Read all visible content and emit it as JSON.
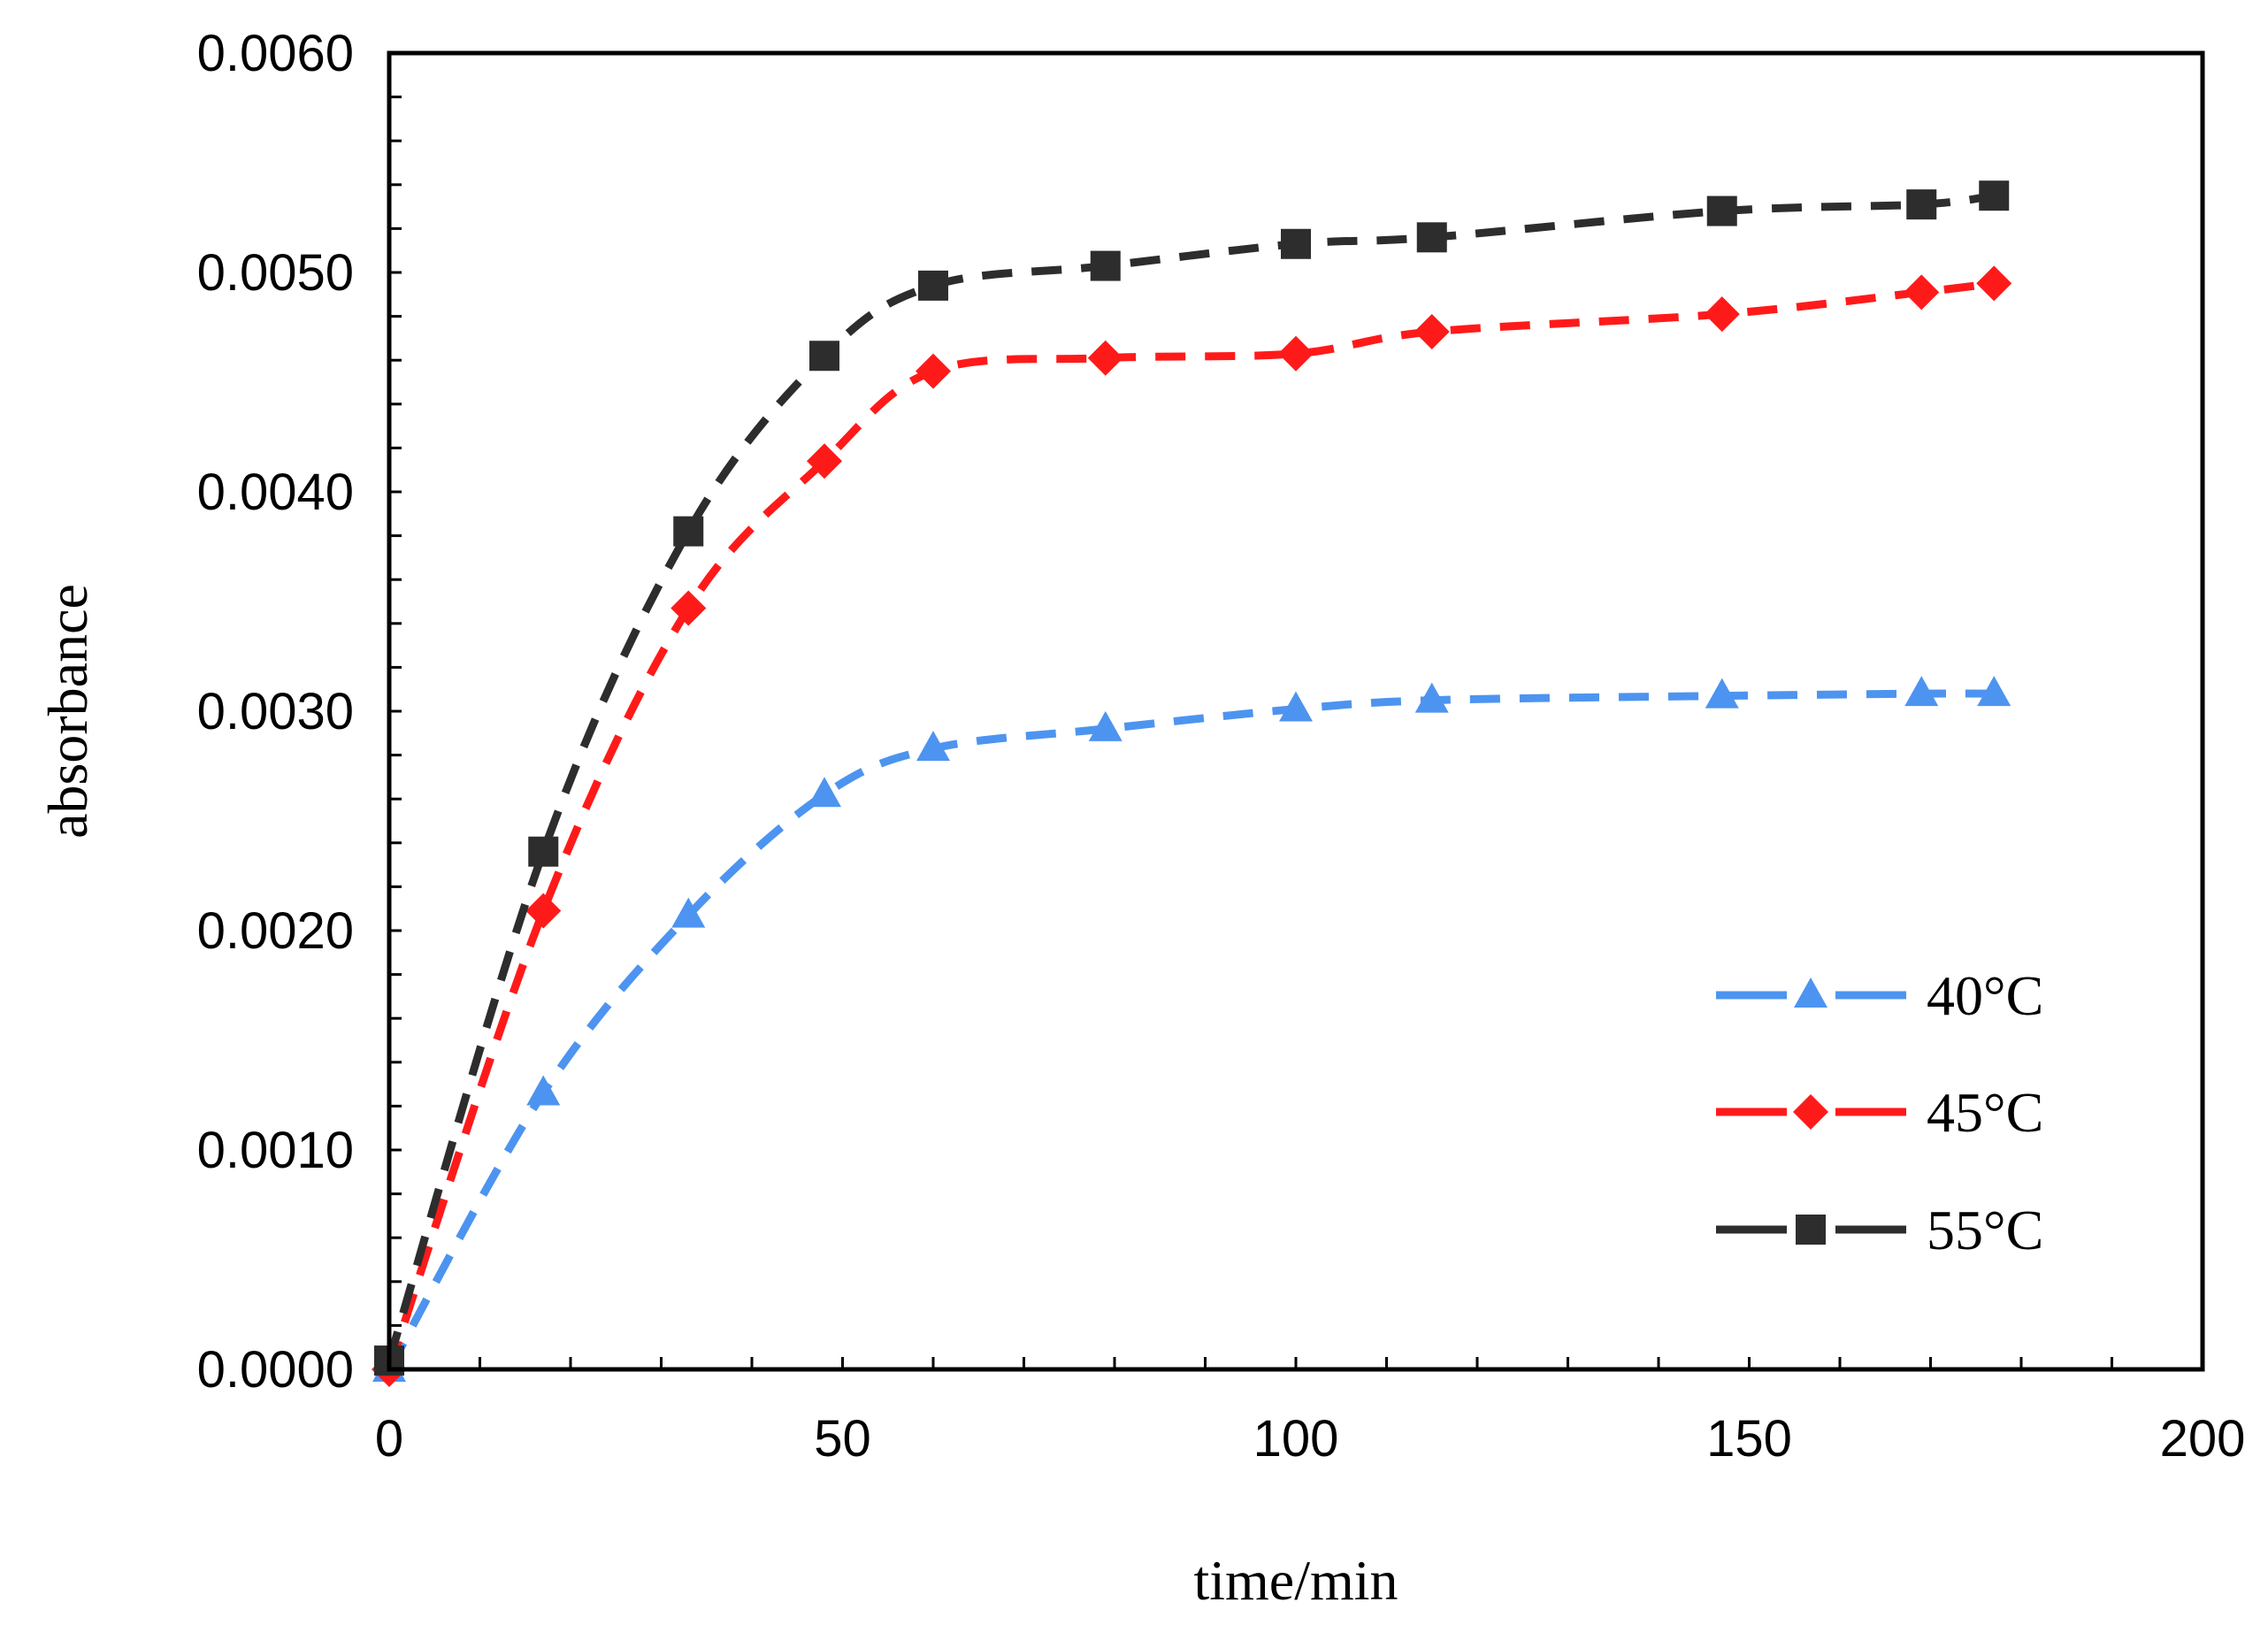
{
  "chart_data": {
    "type": "line",
    "title": "",
    "xlabel": "time/min",
    "ylabel": "absorbance",
    "xlim": [
      0,
      200
    ],
    "ylim": [
      0,
      0.006
    ],
    "x_ticks": [
      "0",
      "50",
      "100",
      "150",
      "200"
    ],
    "y_ticks": [
      "0.0000",
      "0.0010",
      "0.0020",
      "0.0030",
      "0.0040",
      "0.0050",
      "0.0060"
    ],
    "grid": false,
    "legend_position": "bottom-right",
    "x": [
      0,
      17,
      33,
      48,
      60,
      79,
      100,
      115,
      147,
      169,
      177
    ],
    "series": [
      {
        "name": "40°C",
        "color": "#4d94f0",
        "marker": "triangle",
        "values": [
          0.0,
          0.00126,
          0.00207,
          0.00262,
          0.00283,
          0.00292,
          0.00301,
          0.00305,
          0.00307,
          0.00308,
          0.00308
        ]
      },
      {
        "name": "45°C",
        "color": "#ff1a1a",
        "marker": "diamond",
        "values": [
          0.0,
          0.00209,
          0.00347,
          0.00414,
          0.00455,
          0.00461,
          0.00463,
          0.00473,
          0.00481,
          0.00491,
          0.00495
        ]
      },
      {
        "name": "55°C",
        "color": "#2d2d2d",
        "marker": "square",
        "values": [
          4e-05,
          0.00236,
          0.00382,
          0.00462,
          0.00494,
          0.00503,
          0.00513,
          0.00516,
          0.00528,
          0.00531,
          0.00535
        ]
      }
    ]
  }
}
